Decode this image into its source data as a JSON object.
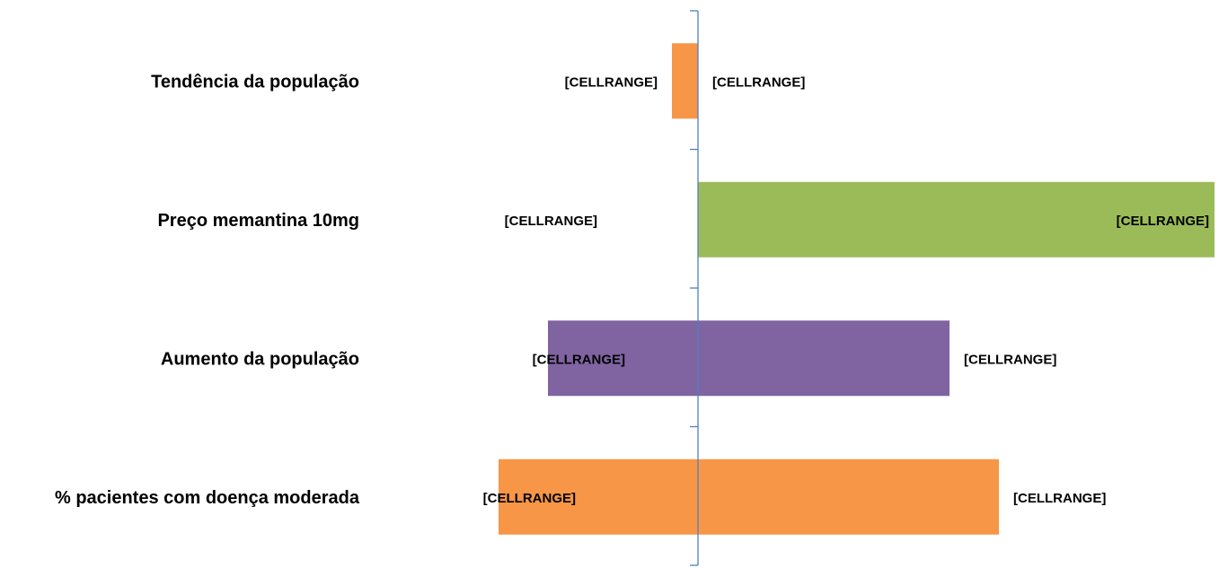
{
  "chart_data": {
    "type": "bar",
    "orientation": "horizontal",
    "title": "",
    "xlabel": "",
    "ylabel": "",
    "categories": [
      "Tendência da população",
      "Preço memantina 10mg",
      "Aumento da população",
      "% pacientes com doença moderada"
    ],
    "bars": [
      {
        "low": -29,
        "high": 0,
        "color": "#F79646",
        "low_label": "[CELLRANGE]",
        "high_label": "[CELLRANGE]"
      },
      {
        "low": 0,
        "high": 575,
        "color": "#9BBB59",
        "low_label": "[CELLRANGE]",
        "high_label": "[CELLRANGE]"
      },
      {
        "low": -167,
        "high": 280,
        "color": "#8064A2",
        "low_label": "[CELLRANGE]",
        "high_label": "[CELLRANGE]"
      },
      {
        "low": -222,
        "high": 335,
        "color": "#F79646",
        "low_label": "[CELLRANGE]",
        "high_label": "[CELLRANGE]"
      }
    ],
    "xlim": [
      -222,
      575
    ],
    "axis_color": "#4F81BD",
    "grid": false,
    "legend": "none"
  }
}
